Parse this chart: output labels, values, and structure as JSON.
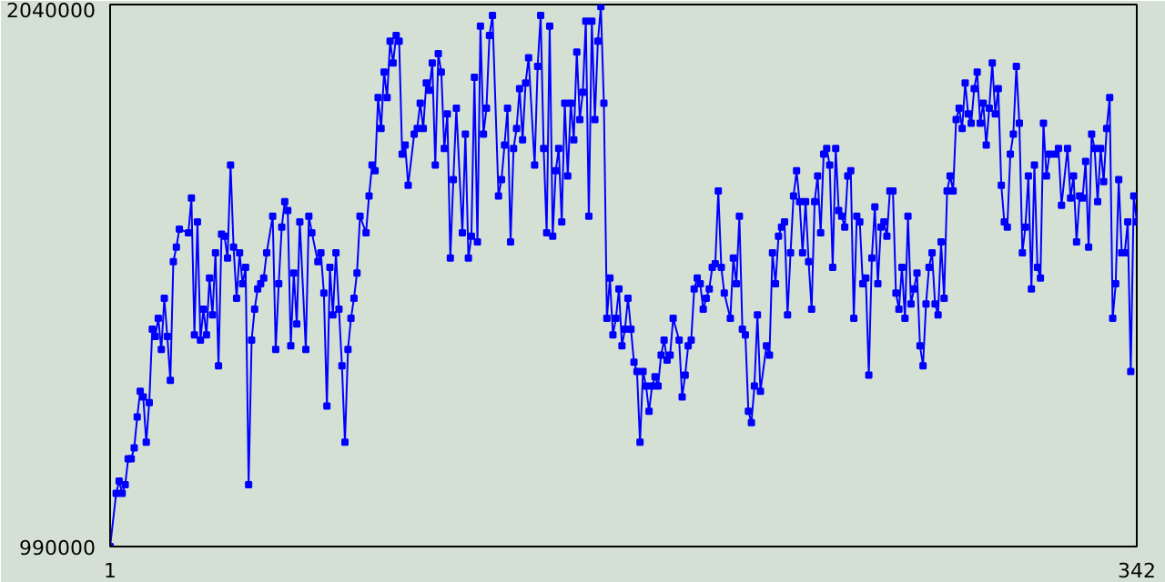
{
  "chart_data": {
    "type": "line",
    "marker": "square",
    "line_style": "solid",
    "color": "#0000ff",
    "xlim": [
      1,
      342
    ],
    "xticks": [
      1,
      342
    ],
    "ylim": [
      990000,
      2040000
    ],
    "yticks": [
      990000,
      2040000
    ],
    "x": [
      1,
      3,
      4,
      5,
      6,
      7,
      8,
      9,
      10,
      11,
      12,
      13,
      14,
      15,
      16,
      17,
      18,
      19,
      20,
      21,
      22,
      23,
      24,
      27,
      28,
      29,
      30,
      31,
      32,
      33,
      34,
      35,
      36,
      37,
      38,
      39,
      40,
      41,
      42,
      43,
      44,
      45,
      46,
      47,
      48,
      49,
      50,
      51,
      52,
      53,
      55,
      56,
      57,
      58,
      59,
      60,
      61,
      62,
      63,
      64,
      66,
      67,
      68,
      70,
      71,
      72,
      73,
      74,
      75,
      76,
      77,
      78,
      79,
      80,
      81,
      82,
      83,
      84,
      86,
      87,
      88,
      89,
      90,
      91,
      92,
      93,
      94,
      95,
      96,
      97,
      98,
      99,
      100,
      102,
      103,
      104,
      105,
      106,
      107,
      108,
      109,
      110,
      111,
      112,
      113,
      114,
      115,
      116,
      118,
      119,
      120,
      121,
      122,
      123,
      124,
      125,
      126,
      127,
      128,
      130,
      131,
      132,
      133,
      134,
      135,
      136,
      137,
      138,
      139,
      140,
      142,
      143,
      144,
      145,
      146,
      147,
      148,
      149,
      150,
      151,
      152,
      153,
      154,
      155,
      156,
      157,
      158,
      159,
      160,
      161,
      162,
      163,
      164,
      165,
      166,
      167,
      168,
      169,
      170,
      171,
      172,
      173,
      174,
      175,
      176,
      177,
      178,
      179,
      180,
      181,
      182,
      183,
      184,
      185,
      186,
      187,
      188,
      190,
      191,
      192,
      193,
      194,
      195,
      196,
      197,
      198,
      199,
      200,
      201,
      202,
      203,
      204,
      205,
      207,
      208,
      209,
      210,
      211,
      212,
      213,
      214,
      215,
      216,
      217,
      219,
      220,
      221,
      222,
      223,
      224,
      225,
      226,
      227,
      228,
      229,
      230,
      231,
      232,
      233,
      234,
      235,
      236,
      237,
      238,
      239,
      240,
      241,
      242,
      243,
      244,
      245,
      246,
      247,
      248,
      249,
      250,
      251,
      252,
      253,
      254,
      255,
      256,
      257,
      258,
      259,
      260,
      261,
      262,
      263,
      264,
      265,
      266,
      267,
      268,
      269,
      270,
      271,
      272,
      273,
      274,
      275,
      276,
      277,
      278,
      279,
      280,
      281,
      282,
      283,
      284,
      285,
      286,
      287,
      288,
      289,
      290,
      291,
      292,
      293,
      294,
      295,
      296,
      297,
      298,
      299,
      300,
      301,
      302,
      303,
      304,
      305,
      306,
      307,
      308,
      309,
      310,
      311,
      312,
      313,
      315,
      316,
      317,
      319,
      320,
      321,
      322,
      323,
      324,
      325,
      326,
      327,
      328,
      329,
      330,
      331,
      332,
      333,
      334,
      335,
      336,
      337,
      338,
      339,
      340,
      341,
      342
    ],
    "values": [
      990000,
      1093000,
      1117000,
      1093000,
      1110000,
      1160000,
      1160000,
      1181000,
      1241000,
      1291000,
      1280000,
      1192000,
      1269000,
      1411000,
      1397000,
      1432000,
      1372000,
      1471000,
      1397000,
      1312000,
      1542000,
      1570000,
      1605000,
      1598000,
      1665000,
      1400000,
      1619000,
      1390000,
      1450000,
      1400000,
      1510000,
      1439000,
      1559000,
      1340000,
      1595000,
      1591000,
      1549000,
      1729000,
      1570000,
      1471000,
      1559000,
      1499000,
      1531000,
      1110000,
      1390000,
      1450000,
      1489000,
      1499000,
      1510000,
      1559000,
      1630000,
      1372000,
      1499000,
      1609000,
      1658000,
      1641000,
      1379000,
      1520000,
      1421000,
      1619000,
      1372000,
      1630000,
      1598000,
      1542000,
      1559000,
      1481000,
      1262000,
      1531000,
      1439000,
      1559000,
      1450000,
      1340000,
      1192000,
      1372000,
      1432000,
      1471000,
      1520000,
      1630000,
      1598000,
      1669000,
      1729000,
      1718000,
      1860000,
      1800000,
      1909000,
      1860000,
      1969000,
      1927000,
      1980000,
      1969000,
      1750000,
      1768000,
      1690000,
      1789000,
      1800000,
      1849000,
      1800000,
      1888000,
      1874000,
      1927000,
      1729000,
      1945000,
      1909000,
      1761000,
      1828000,
      1549000,
      1701000,
      1839000,
      1598000,
      1789000,
      1549000,
      1591000,
      1899000,
      1580000,
      1998000,
      1789000,
      1839000,
      1980000,
      2019000,
      1669000,
      1701000,
      1768000,
      1839000,
      1580000,
      1761000,
      1800000,
      1877000,
      1778000,
      1888000,
      1937000,
      1729000,
      1920000,
      2019000,
      1761000,
      1598000,
      1998000,
      1591000,
      1718000,
      1761000,
      1619000,
      1849000,
      1708000,
      1849000,
      1778000,
      1948000,
      1817000,
      1870000,
      2008000,
      1630000,
      2008000,
      1817000,
      1969000,
      2036000,
      1849000,
      1432000,
      1510000,
      1400000,
      1432000,
      1489000,
      1379000,
      1411000,
      1471000,
      1411000,
      1347000,
      1329000,
      1192000,
      1329000,
      1301000,
      1252000,
      1301000,
      1319000,
      1301000,
      1361000,
      1390000,
      1351000,
      1361000,
      1432000,
      1390000,
      1280000,
      1322000,
      1379000,
      1390000,
      1489000,
      1510000,
      1499000,
      1450000,
      1471000,
      1489000,
      1531000,
      1538000,
      1679000,
      1531000,
      1481000,
      1432000,
      1549000,
      1499000,
      1630000,
      1411000,
      1400000,
      1252000,
      1230000,
      1301000,
      1439000,
      1291000,
      1379000,
      1361000,
      1559000,
      1499000,
      1591000,
      1609000,
      1619000,
      1439000,
      1559000,
      1669000,
      1718000,
      1658000,
      1559000,
      1658000,
      1542000,
      1450000,
      1658000,
      1708000,
      1598000,
      1750000,
      1761000,
      1729000,
      1531000,
      1761000,
      1641000,
      1630000,
      1609000,
      1708000,
      1718000,
      1432000,
      1630000,
      1619000,
      1499000,
      1510000,
      1322000,
      1549000,
      1648000,
      1499000,
      1609000,
      1619000,
      1591000,
      1679000,
      1679000,
      1481000,
      1450000,
      1531000,
      1432000,
      1630000,
      1460000,
      1489000,
      1520000,
      1379000,
      1340000,
      1460000,
      1531000,
      1559000,
      1460000,
      1439000,
      1580000,
      1471000,
      1679000,
      1708000,
      1679000,
      1817000,
      1839000,
      1800000,
      1888000,
      1828000,
      1810000,
      1877000,
      1909000,
      1810000,
      1849000,
      1768000,
      1839000,
      1927000,
      1828000,
      1877000,
      1690000,
      1619000,
      1609000,
      1750000,
      1789000,
      1920000,
      1810000,
      1559000,
      1609000,
      1708000,
      1489000,
      1729000,
      1531000,
      1510000,
      1810000,
      1708000,
      1750000,
      1750000,
      1761000,
      1651000,
      1761000,
      1665000,
      1708000,
      1580000,
      1669000,
      1665000,
      1736000,
      1570000,
      1789000,
      1761000,
      1658000,
      1761000,
      1697000,
      1800000,
      1860000,
      1432000,
      1499000,
      1701000,
      1559000,
      1559000,
      1619000,
      1329000,
      1669000,
      1619000
    ]
  }
}
